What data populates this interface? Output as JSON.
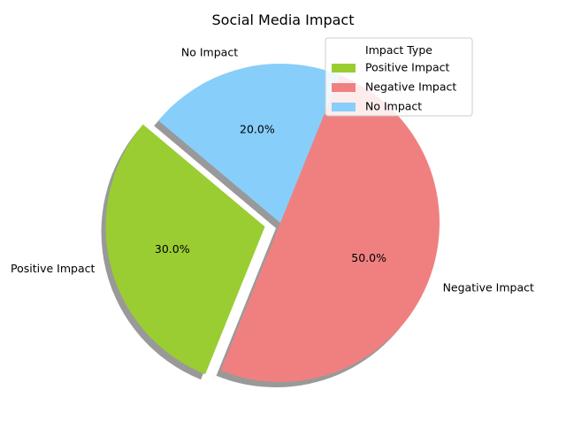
{
  "chart_data": {
    "type": "pie",
    "title": "Social Media Impact",
    "categories": [
      "Positive Impact",
      "Negative Impact",
      "No Impact"
    ],
    "values": [
      30,
      50,
      20
    ],
    "percent_labels": [
      "30.0%",
      "50.0%",
      "20.0%"
    ],
    "colors": [
      "#9acd32",
      "#f08080",
      "#87cefa"
    ],
    "explode": [
      0.1,
      0,
      0
    ],
    "start_angle_deg": 140,
    "shadow": true,
    "legend": {
      "title": "Impact Type",
      "placement": "upper right",
      "entries": [
        "Positive Impact",
        "Negative Impact",
        "No Impact"
      ]
    }
  }
}
